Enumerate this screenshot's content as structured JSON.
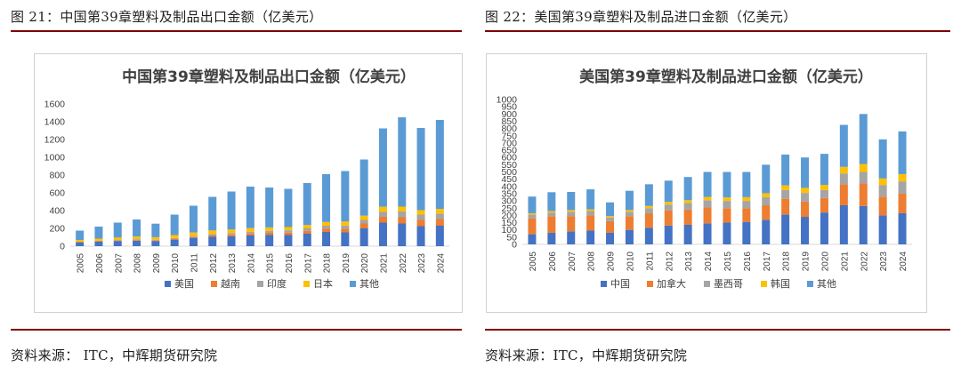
{
  "left_panel": {
    "fig_label": "图 21：中国第39章塑料及制品出口金额（亿美元）",
    "source": "资料来源： ITC，中辉期货研究院"
  },
  "right_panel": {
    "fig_label": "图 22：美国第39章塑料及制品进口金额（亿美元）",
    "source": "资料来源：ITC，中辉期货研究院"
  },
  "colors": {
    "rule": "#7f0000",
    "series": [
      "#4472c4",
      "#ed7d31",
      "#a5a5a5",
      "#ffc000",
      "#5b9bd5"
    ]
  },
  "chart_data": [
    {
      "type": "bar",
      "stacked": true,
      "title": "中国第39章塑料及制品出口金额（亿美元）",
      "xlabel": "",
      "ylabel": "",
      "ylim": [
        0,
        1600
      ],
      "yticks": [
        0,
        200,
        400,
        600,
        800,
        1000,
        1200,
        1400,
        1600
      ],
      "grid": false,
      "legend_position": "bottom",
      "categories": [
        "2005",
        "2006",
        "2007",
        "2008",
        "2009",
        "2010",
        "2011",
        "2012",
        "2013",
        "2014",
        "2015",
        "2016",
        "2017",
        "2018",
        "2019",
        "2020",
        "2021",
        "2022",
        "2023",
        "2024"
      ],
      "series": [
        {
          "name": "美国",
          "values": [
            40,
            50,
            55,
            60,
            55,
            70,
            90,
            105,
            110,
            120,
            125,
            125,
            140,
            160,
            155,
            200,
            265,
            255,
            225,
            230
          ]
        },
        {
          "name": "越南",
          "values": [
            5,
            5,
            7,
            8,
            8,
            10,
            12,
            15,
            18,
            22,
            25,
            28,
            32,
            38,
            42,
            55,
            65,
            70,
            70,
            75
          ]
        },
        {
          "name": "印度",
          "values": [
            5,
            6,
            8,
            10,
            10,
            12,
            15,
            17,
            19,
            21,
            23,
            25,
            28,
            32,
            35,
            40,
            55,
            65,
            60,
            62
          ]
        },
        {
          "name": "日本",
          "values": [
            20,
            24,
            27,
            30,
            28,
            33,
            37,
            40,
            40,
            40,
            38,
            37,
            38,
            42,
            45,
            48,
            58,
            55,
            50,
            52
          ]
        },
        {
          "name": "其他",
          "values": [
            105,
            135,
            168,
            192,
            152,
            230,
            301,
            378,
            428,
            467,
            449,
            430,
            472,
            538,
            568,
            632,
            882,
            1005,
            925,
            1001
          ]
        }
      ]
    },
    {
      "type": "bar",
      "stacked": true,
      "title": "美国第39章塑料及制品进口金额（亿美元）",
      "xlabel": "",
      "ylabel": "",
      "ylim": [
        0,
        1000
      ],
      "yticks": [
        0,
        50,
        100,
        150,
        200,
        250,
        300,
        350,
        400,
        450,
        500,
        550,
        600,
        650,
        700,
        750,
        800,
        850,
        900,
        950,
        1000
      ],
      "grid": false,
      "legend_position": "bottom",
      "categories": [
        "2005",
        "2006",
        "2007",
        "2008",
        "2009",
        "2010",
        "2011",
        "2012",
        "2013",
        "2014",
        "2015",
        "2016",
        "2017",
        "2018",
        "2019",
        "2020",
        "2021",
        "2022",
        "2023",
        "2024"
      ],
      "series": [
        {
          "name": "中国",
          "values": [
            70,
            80,
            90,
            95,
            80,
            100,
            115,
            130,
            135,
            145,
            150,
            155,
            170,
            205,
            190,
            220,
            270,
            265,
            200,
            215
          ]
        },
        {
          "name": "加拿大",
          "values": [
            110,
            115,
            105,
            105,
            80,
            95,
            100,
            105,
            105,
            110,
            100,
            95,
            100,
            110,
            105,
            100,
            145,
            155,
            130,
            135
          ]
        },
        {
          "name": "墨西哥",
          "values": [
            25,
            25,
            30,
            30,
            25,
            30,
            35,
            40,
            45,
            50,
            50,
            50,
            55,
            60,
            60,
            55,
            75,
            80,
            80,
            85
          ]
        },
        {
          "name": "韩国",
          "values": [
            10,
            10,
            12,
            12,
            10,
            12,
            15,
            18,
            20,
            22,
            24,
            26,
            28,
            32,
            35,
            35,
            45,
            55,
            45,
            50
          ]
        },
        {
          "name": "其他",
          "values": [
            115,
            130,
            125,
            138,
            95,
            133,
            150,
            147,
            160,
            173,
            176,
            174,
            197,
            213,
            210,
            215,
            290,
            345,
            270,
            295
          ]
        }
      ]
    }
  ]
}
